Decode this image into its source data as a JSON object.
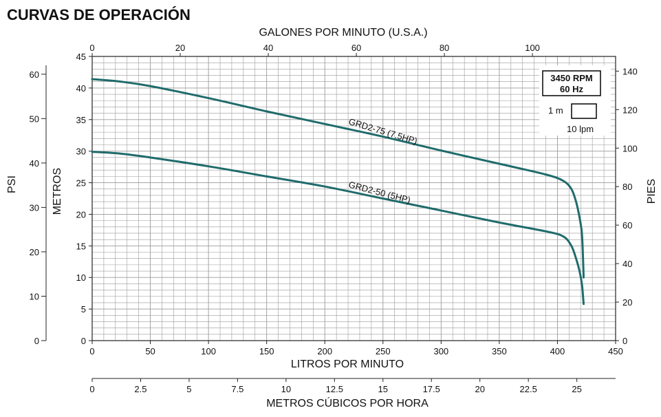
{
  "chart_data": {
    "type": "line",
    "title": "CURVAS DE OPERACIÓN",
    "xlabel": "LITROS POR MINUTO",
    "ylabel": "METROS",
    "xlim": [
      0,
      450
    ],
    "ylim": [
      0,
      45
    ],
    "x_ticks": [
      0,
      50,
      100,
      150,
      200,
      250,
      300,
      350,
      400,
      450
    ],
    "y_ticks": [
      0,
      5,
      10,
      15,
      20,
      25,
      30,
      35,
      40,
      45
    ],
    "secondary_axes": {
      "top": {
        "label": "GALONES POR MINUTO (U.S.A.)",
        "ticks": [
          0,
          20,
          40,
          60,
          80,
          100
        ],
        "lpm_per_unit": 3.785
      },
      "left_outer": {
        "label": "PSI",
        "ticks": [
          0,
          10,
          20,
          30,
          40,
          50,
          60
        ],
        "m_per_unit": 0.7031
      },
      "right": {
        "label": "PIES",
        "ticks": [
          0,
          20,
          40,
          60,
          80,
          100,
          120,
          140
        ],
        "m_per_unit": 0.3048
      },
      "bottom_outer": {
        "label": "METROS CÚBICOS POR HORA",
        "ticks": [
          "0",
          "2.5",
          "5",
          "7.5",
          "10",
          "12.5",
          "15",
          "17.5",
          "20",
          "22.5",
          "25"
        ],
        "lpm_per_unit": 16.6667
      }
    },
    "legend": {
      "rpm": "3450 RPM",
      "hz": "60 Hz",
      "scale_v": "1 m",
      "scale_h": "10 lpm"
    },
    "grid": true,
    "series": [
      {
        "name": "GRD2-75 (7.5HP)",
        "color": "#1f6b6b",
        "x": [
          0,
          25,
          50,
          100,
          150,
          200,
          250,
          300,
          350,
          390,
          405,
          412,
          416,
          419,
          421,
          422,
          422.5
        ],
        "y": [
          41.4,
          41.0,
          40.3,
          38.4,
          36.3,
          34.3,
          32.3,
          30.1,
          28.0,
          26.3,
          25.3,
          24.0,
          22.0,
          19.5,
          17.0,
          13.0,
          10.0
        ]
      },
      {
        "name": "GRD2-50 (5HP)",
        "color": "#1f6b6b",
        "x": [
          0,
          25,
          50,
          100,
          150,
          200,
          250,
          300,
          350,
          390,
          405,
          412,
          416,
          419,
          421,
          422,
          422.5
        ],
        "y": [
          29.9,
          29.6,
          29.0,
          27.6,
          26.0,
          24.4,
          22.5,
          20.6,
          18.7,
          17.3,
          16.5,
          15.0,
          13.0,
          11.0,
          9.0,
          7.0,
          5.8
        ]
      }
    ]
  }
}
